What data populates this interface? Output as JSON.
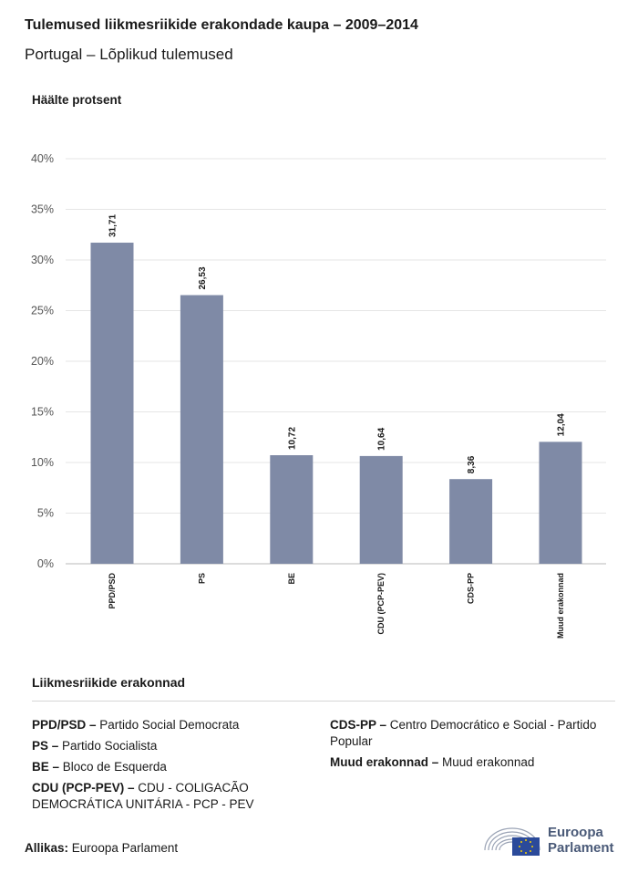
{
  "header": {
    "title": "Tulemused liikmesriikide erakondade kaupa – 2009–2014",
    "subtitle": "Portugal – Lõplikud tulemused"
  },
  "chart_data": {
    "type": "bar",
    "ylabel": "Häälte protsent",
    "categories": [
      "PPD/PSD",
      "PS",
      "BE",
      "CDU (PCP-PEV)",
      "CDS-PP",
      "Muud erakonnad"
    ],
    "values": [
      31.71,
      26.53,
      10.72,
      10.64,
      8.36,
      12.04
    ],
    "value_labels": [
      "31,71",
      "26,53",
      "10,72",
      "10,64",
      "8,36",
      "12,04"
    ],
    "yticks": [
      "0%",
      "5%",
      "10%",
      "15%",
      "20%",
      "25%",
      "30%",
      "35%",
      "40%"
    ],
    "ylim": [
      0,
      40
    ],
    "grid": true,
    "bar_color": "#7f8aa6"
  },
  "legend": {
    "title": "Liikmesriikide erakonnad",
    "left": [
      {
        "abbr": "PPD/PSD –",
        "name": "Partido Social Democrata"
      },
      {
        "abbr": "PS –",
        "name": "Partido Socialista"
      },
      {
        "abbr": "BE –",
        "name": "Bloco de Esquerda"
      },
      {
        "abbr": "CDU (PCP-PEV) –",
        "name": "CDU - COLIGACÃO DEMOCRÁTICA UNITÁRIA - PCP - PEV"
      }
    ],
    "right": [
      {
        "abbr": "CDS-PP –",
        "name": "Centro Democrático e Social - Partido Popular"
      },
      {
        "abbr": "Muud erakonnad –",
        "name": "Muud erakonnad"
      }
    ]
  },
  "footer": {
    "source_label": "Allikas:",
    "source_value": "Euroopa Parlament",
    "logo_line1": "Euroopa",
    "logo_line2": "Parlament"
  }
}
